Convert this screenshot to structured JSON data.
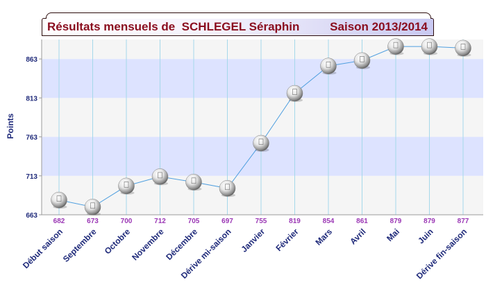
{
  "header": {
    "title_left": "Résultats mensuels de  SCHLEGEL Séraphin",
    "title_right": "Saison 2013/2014"
  },
  "colors": {
    "line": "#4f9fdf",
    "band": "#dde3ff",
    "band_alt": "#f5f5f5",
    "grid": "#a5d8ea",
    "value_label": "#9b37b5",
    "axis_text": "#1f2a7a",
    "title_text": "#8a0d1e"
  },
  "chart_data": {
    "type": "line",
    "title": "Résultats mensuels de  SCHLEGEL Séraphin",
    "subtitle": "Saison 2013/2014",
    "xlabel": "",
    "ylabel": "Points",
    "categories": [
      "Début saison",
      "Septembre",
      "Octobre",
      "Novembre",
      "Décembre",
      "Dérive mi-saison",
      "Janvier",
      "Février",
      "Mars",
      "Avril",
      "Mai",
      "Juin",
      "Dérive fin-saison"
    ],
    "values": [
      682,
      673,
      700,
      712,
      705,
      697,
      755,
      819,
      854,
      861,
      879,
      879,
      877
    ],
    "value_labels": [
      "682",
      "673",
      "700",
      "712",
      "705",
      "697",
      "755",
      "819",
      "854",
      "861",
      "879",
      "879",
      "877"
    ],
    "ylim": [
      663,
      888
    ],
    "yticks": [
      663,
      713,
      763,
      813,
      863
    ],
    "ytick_labels": [
      "663",
      "713",
      "763",
      "813",
      "863"
    ],
    "grid": true,
    "legend": "none",
    "marker": "ball"
  }
}
